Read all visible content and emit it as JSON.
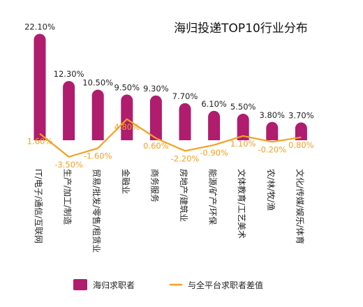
{
  "chart_data": {
    "type": "bar",
    "title": "海归投递TOP10行业分布",
    "categories": [
      "IT/电子/通信/互联网",
      "生产/加工/制造",
      "贸易/批发/零售/租赁业",
      "金融业",
      "商务服务",
      "房地产/建筑业",
      "能源/矿产/环保",
      "文体教育/工艺美术",
      "农/林/牧/渔",
      "文化/传媒/娱乐/体育"
    ],
    "series": [
      {
        "name": "海归求职者",
        "type": "bar",
        "color": "#b01c6e",
        "values": [
          22.1,
          12.3,
          10.5,
          9.5,
          9.3,
          7.7,
          6.1,
          5.5,
          3.8,
          3.7
        ],
        "labels": [
          "22.10%",
          "12.30%",
          "10.50%",
          "9.50%",
          "9.30%",
          "7.70%",
          "6.10%",
          "5.50%",
          "3.80%",
          "3.70%"
        ]
      },
      {
        "name": "与全平台求职者差值",
        "type": "line",
        "color": "#f5a020",
        "values": [
          1.6,
          -3.5,
          -1.6,
          4.8,
          0.6,
          -2.2,
          -0.9,
          1.1,
          -0.2,
          0.8
        ],
        "labels": [
          "1.60%",
          "-3.50%",
          "-1.60%",
          "4.80%",
          "0.60%",
          "-2.20%",
          "-0.90%",
          "1.10%",
          "-0.20%",
          "0.80%"
        ]
      }
    ],
    "legend": "bottom",
    "grid": false
  }
}
